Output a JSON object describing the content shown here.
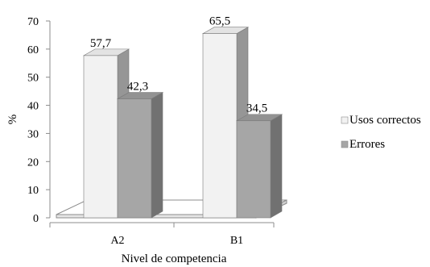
{
  "chart_data": {
    "type": "bar",
    "subtype": "3d-clustered",
    "categories": [
      "A2",
      "B1"
    ],
    "series": [
      {
        "name": "Usos correctos",
        "values": [
          57.7,
          65.5
        ],
        "value_labels": [
          "57,7",
          "65,5"
        ],
        "color": "#f2f2f2"
      },
      {
        "name": "Errores",
        "values": [
          42.3,
          34.5
        ],
        "value_labels": [
          "42,3",
          "34,5"
        ],
        "color": "#a6a6a6"
      }
    ],
    "xlabel": "Nivel de competencia",
    "ylabel": "%",
    "ylim": [
      0,
      70
    ],
    "yticks": [
      "0",
      "10",
      "20",
      "30",
      "40",
      "50",
      "60",
      "70"
    ],
    "grid": false,
    "legend_position": "right"
  }
}
